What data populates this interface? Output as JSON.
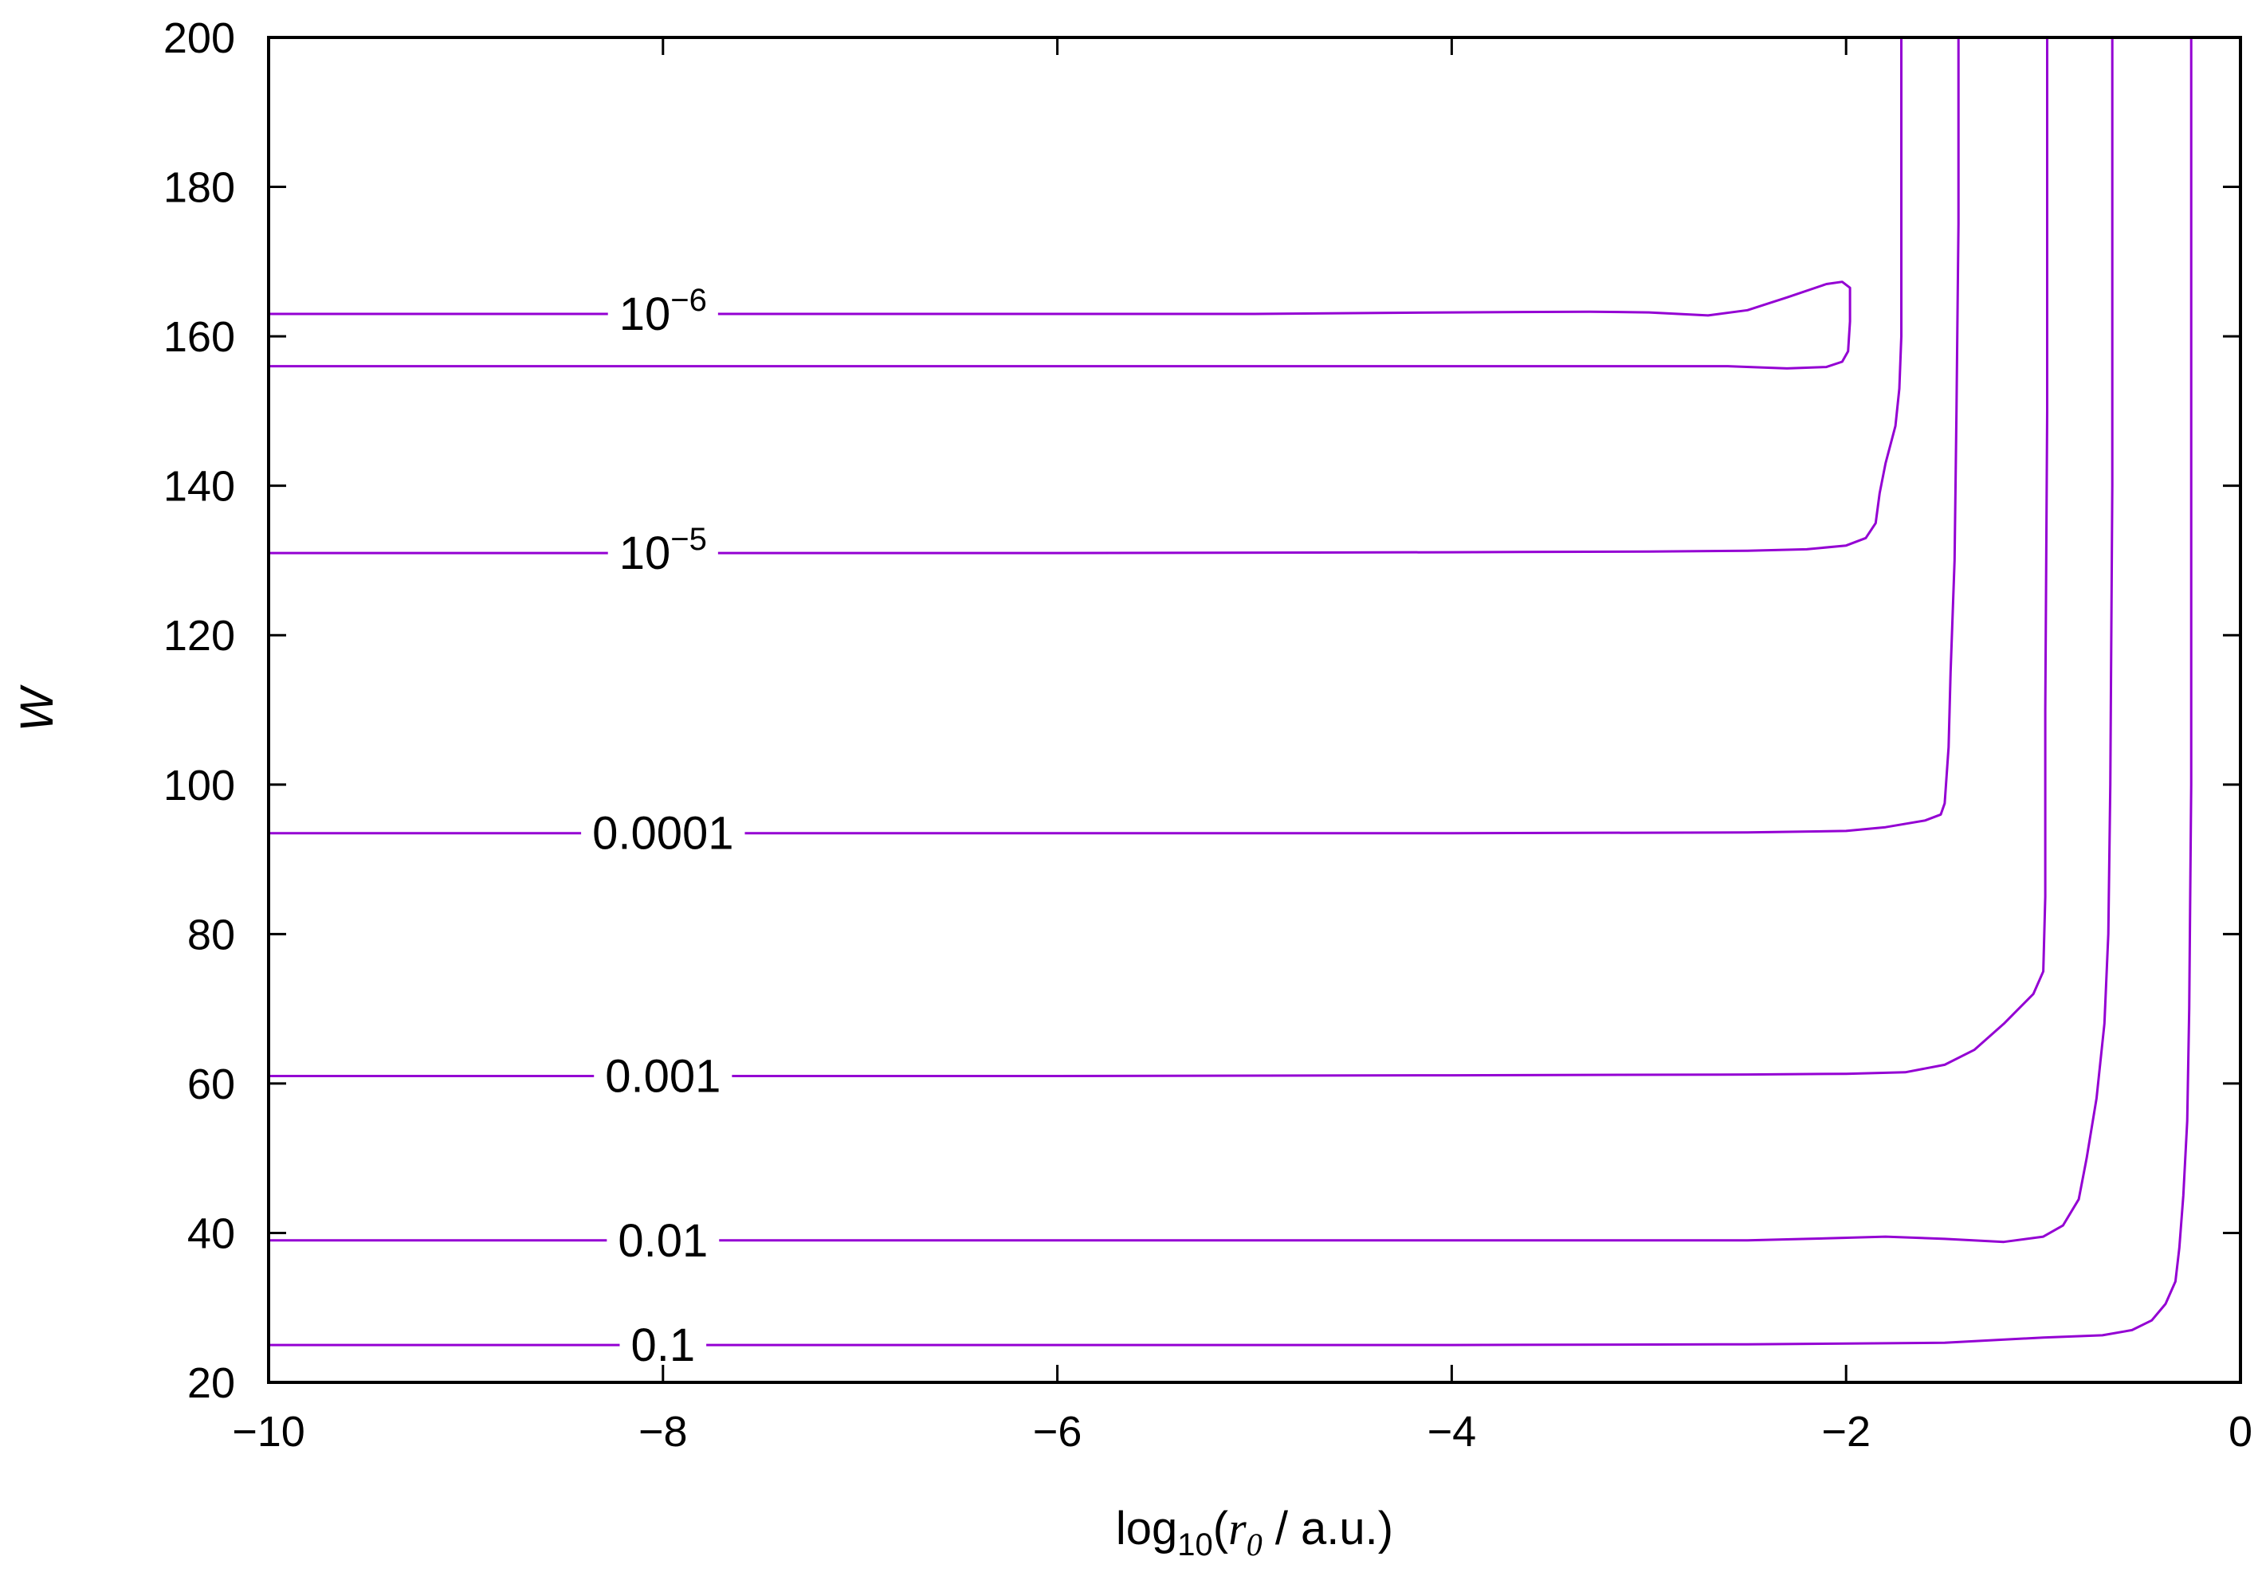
{
  "chart_data": {
    "type": "contour",
    "xlabel": {
      "prefix": "log",
      "sub": "10",
      "open": "(",
      "var": "r",
      "var_sub": "0",
      "rest": " / a.u.)"
    },
    "ylabel": "W",
    "xlim": [
      -10,
      0
    ],
    "ylim": [
      20,
      200
    ],
    "xticks": [
      {
        "value": -10,
        "label": "−10"
      },
      {
        "value": -8,
        "label": "−8"
      },
      {
        "value": -6,
        "label": "−6"
      },
      {
        "value": -4,
        "label": "−4"
      },
      {
        "value": -2,
        "label": "−2"
      },
      {
        "value": 0,
        "label": "0"
      }
    ],
    "yticks": [
      {
        "value": 20,
        "label": "20"
      },
      {
        "value": 40,
        "label": "40"
      },
      {
        "value": 60,
        "label": "60"
      },
      {
        "value": 80,
        "label": "80"
      },
      {
        "value": 100,
        "label": "100"
      },
      {
        "value": 120,
        "label": "120"
      },
      {
        "value": 140,
        "label": "140"
      },
      {
        "value": 160,
        "label": "160"
      },
      {
        "value": 180,
        "label": "180"
      },
      {
        "value": 200,
        "label": "200"
      }
    ],
    "line_color": "#9400d3",
    "contours": [
      {
        "name": "contour-1e-6",
        "label": {
          "base": "10",
          "exp": "−6",
          "x": -8.0,
          "y": 163
        },
        "points": [
          [
            -10,
            163
          ],
          [
            -7.0,
            163
          ],
          [
            -5.0,
            163
          ],
          [
            -4.0,
            163.2
          ],
          [
            -3.3,
            163.3
          ],
          [
            -3.0,
            163.2
          ],
          [
            -2.7,
            162.8
          ],
          [
            -2.5,
            163.5
          ],
          [
            -2.3,
            165.2
          ],
          [
            -2.1,
            167.0
          ],
          [
            -2.02,
            167.3
          ],
          [
            -1.98,
            166.5
          ],
          [
            -1.98,
            162
          ],
          [
            -1.99,
            158
          ],
          [
            -2.02,
            156.6
          ],
          [
            -2.1,
            155.9
          ],
          [
            -2.3,
            155.7
          ],
          [
            -2.6,
            156.0
          ],
          [
            -4.0,
            156.0
          ],
          [
            -7.0,
            156.0
          ],
          [
            -10,
            156.0
          ]
        ]
      },
      {
        "name": "contour-1e-5",
        "label": {
          "base": "10",
          "exp": "−5",
          "x": -8.0,
          "y": 131
        },
        "points": [
          [
            -10,
            131
          ],
          [
            -6.0,
            131
          ],
          [
            -4.0,
            131.1
          ],
          [
            -3.0,
            131.2
          ],
          [
            -2.5,
            131.3
          ],
          [
            -2.2,
            131.5
          ],
          [
            -2.0,
            132.0
          ],
          [
            -1.9,
            133.0
          ],
          [
            -1.85,
            135.0
          ],
          [
            -1.83,
            139
          ],
          [
            -1.8,
            143
          ],
          [
            -1.75,
            148
          ],
          [
            -1.73,
            153
          ],
          [
            -1.72,
            160
          ],
          [
            -1.72,
            175
          ],
          [
            -1.72,
            200
          ]
        ]
      },
      {
        "name": "contour-0.0001",
        "label": {
          "text": "0.0001",
          "x": -8.0,
          "y": 93.5
        },
        "points": [
          [
            -10,
            93.5
          ],
          [
            -6.0,
            93.5
          ],
          [
            -4.0,
            93.5
          ],
          [
            -2.5,
            93.6
          ],
          [
            -2.0,
            93.8
          ],
          [
            -1.8,
            94.3
          ],
          [
            -1.6,
            95.2
          ],
          [
            -1.52,
            96.0
          ],
          [
            -1.5,
            97.5
          ],
          [
            -1.48,
            105
          ],
          [
            -1.47,
            115
          ],
          [
            -1.45,
            130
          ],
          [
            -1.44,
            150
          ],
          [
            -1.43,
            175
          ],
          [
            -1.43,
            200
          ]
        ]
      },
      {
        "name": "contour-0.001",
        "label": {
          "text": "0.001",
          "x": -8.0,
          "y": 61
        },
        "points": [
          [
            -10,
            61
          ],
          [
            -6.0,
            61
          ],
          [
            -4.0,
            61.1
          ],
          [
            -2.5,
            61.2
          ],
          [
            -2.0,
            61.3
          ],
          [
            -1.7,
            61.5
          ],
          [
            -1.5,
            62.5
          ],
          [
            -1.35,
            64.5
          ],
          [
            -1.2,
            68.0
          ],
          [
            -1.05,
            72.0
          ],
          [
            -1.0,
            75.0
          ],
          [
            -0.99,
            85
          ],
          [
            -0.99,
            110
          ],
          [
            -0.98,
            150
          ],
          [
            -0.98,
            200
          ]
        ]
      },
      {
        "name": "contour-0.01",
        "label": {
          "text": "0.01",
          "x": -8.0,
          "y": 39
        },
        "points": [
          [
            -10,
            39
          ],
          [
            -6.0,
            39
          ],
          [
            -4.0,
            39
          ],
          [
            -2.5,
            39.0
          ],
          [
            -2.2,
            39.2
          ],
          [
            -1.8,
            39.5
          ],
          [
            -1.5,
            39.2
          ],
          [
            -1.2,
            38.8
          ],
          [
            -1.0,
            39.5
          ],
          [
            -0.9,
            41.0
          ],
          [
            -0.82,
            44.5
          ],
          [
            -0.78,
            50
          ],
          [
            -0.73,
            58
          ],
          [
            -0.69,
            68
          ],
          [
            -0.67,
            80
          ],
          [
            -0.66,
            100
          ],
          [
            -0.65,
            140
          ],
          [
            -0.65,
            200
          ]
        ]
      },
      {
        "name": "contour-0.1",
        "label": {
          "text": "0.1",
          "x": -8.0,
          "y": 25
        },
        "points": [
          [
            -10,
            25
          ],
          [
            -6.0,
            25
          ],
          [
            -4.0,
            25
          ],
          [
            -2.5,
            25.1
          ],
          [
            -1.5,
            25.3
          ],
          [
            -1.0,
            26.0
          ],
          [
            -0.7,
            26.3
          ],
          [
            -0.55,
            27.0
          ],
          [
            -0.45,
            28.3
          ],
          [
            -0.38,
            30.5
          ],
          [
            -0.33,
            33.5
          ],
          [
            -0.31,
            38
          ],
          [
            -0.29,
            45
          ],
          [
            -0.27,
            55
          ],
          [
            -0.26,
            70
          ],
          [
            -0.25,
            100
          ],
          [
            -0.25,
            150
          ],
          [
            -0.25,
            200
          ]
        ]
      }
    ]
  }
}
